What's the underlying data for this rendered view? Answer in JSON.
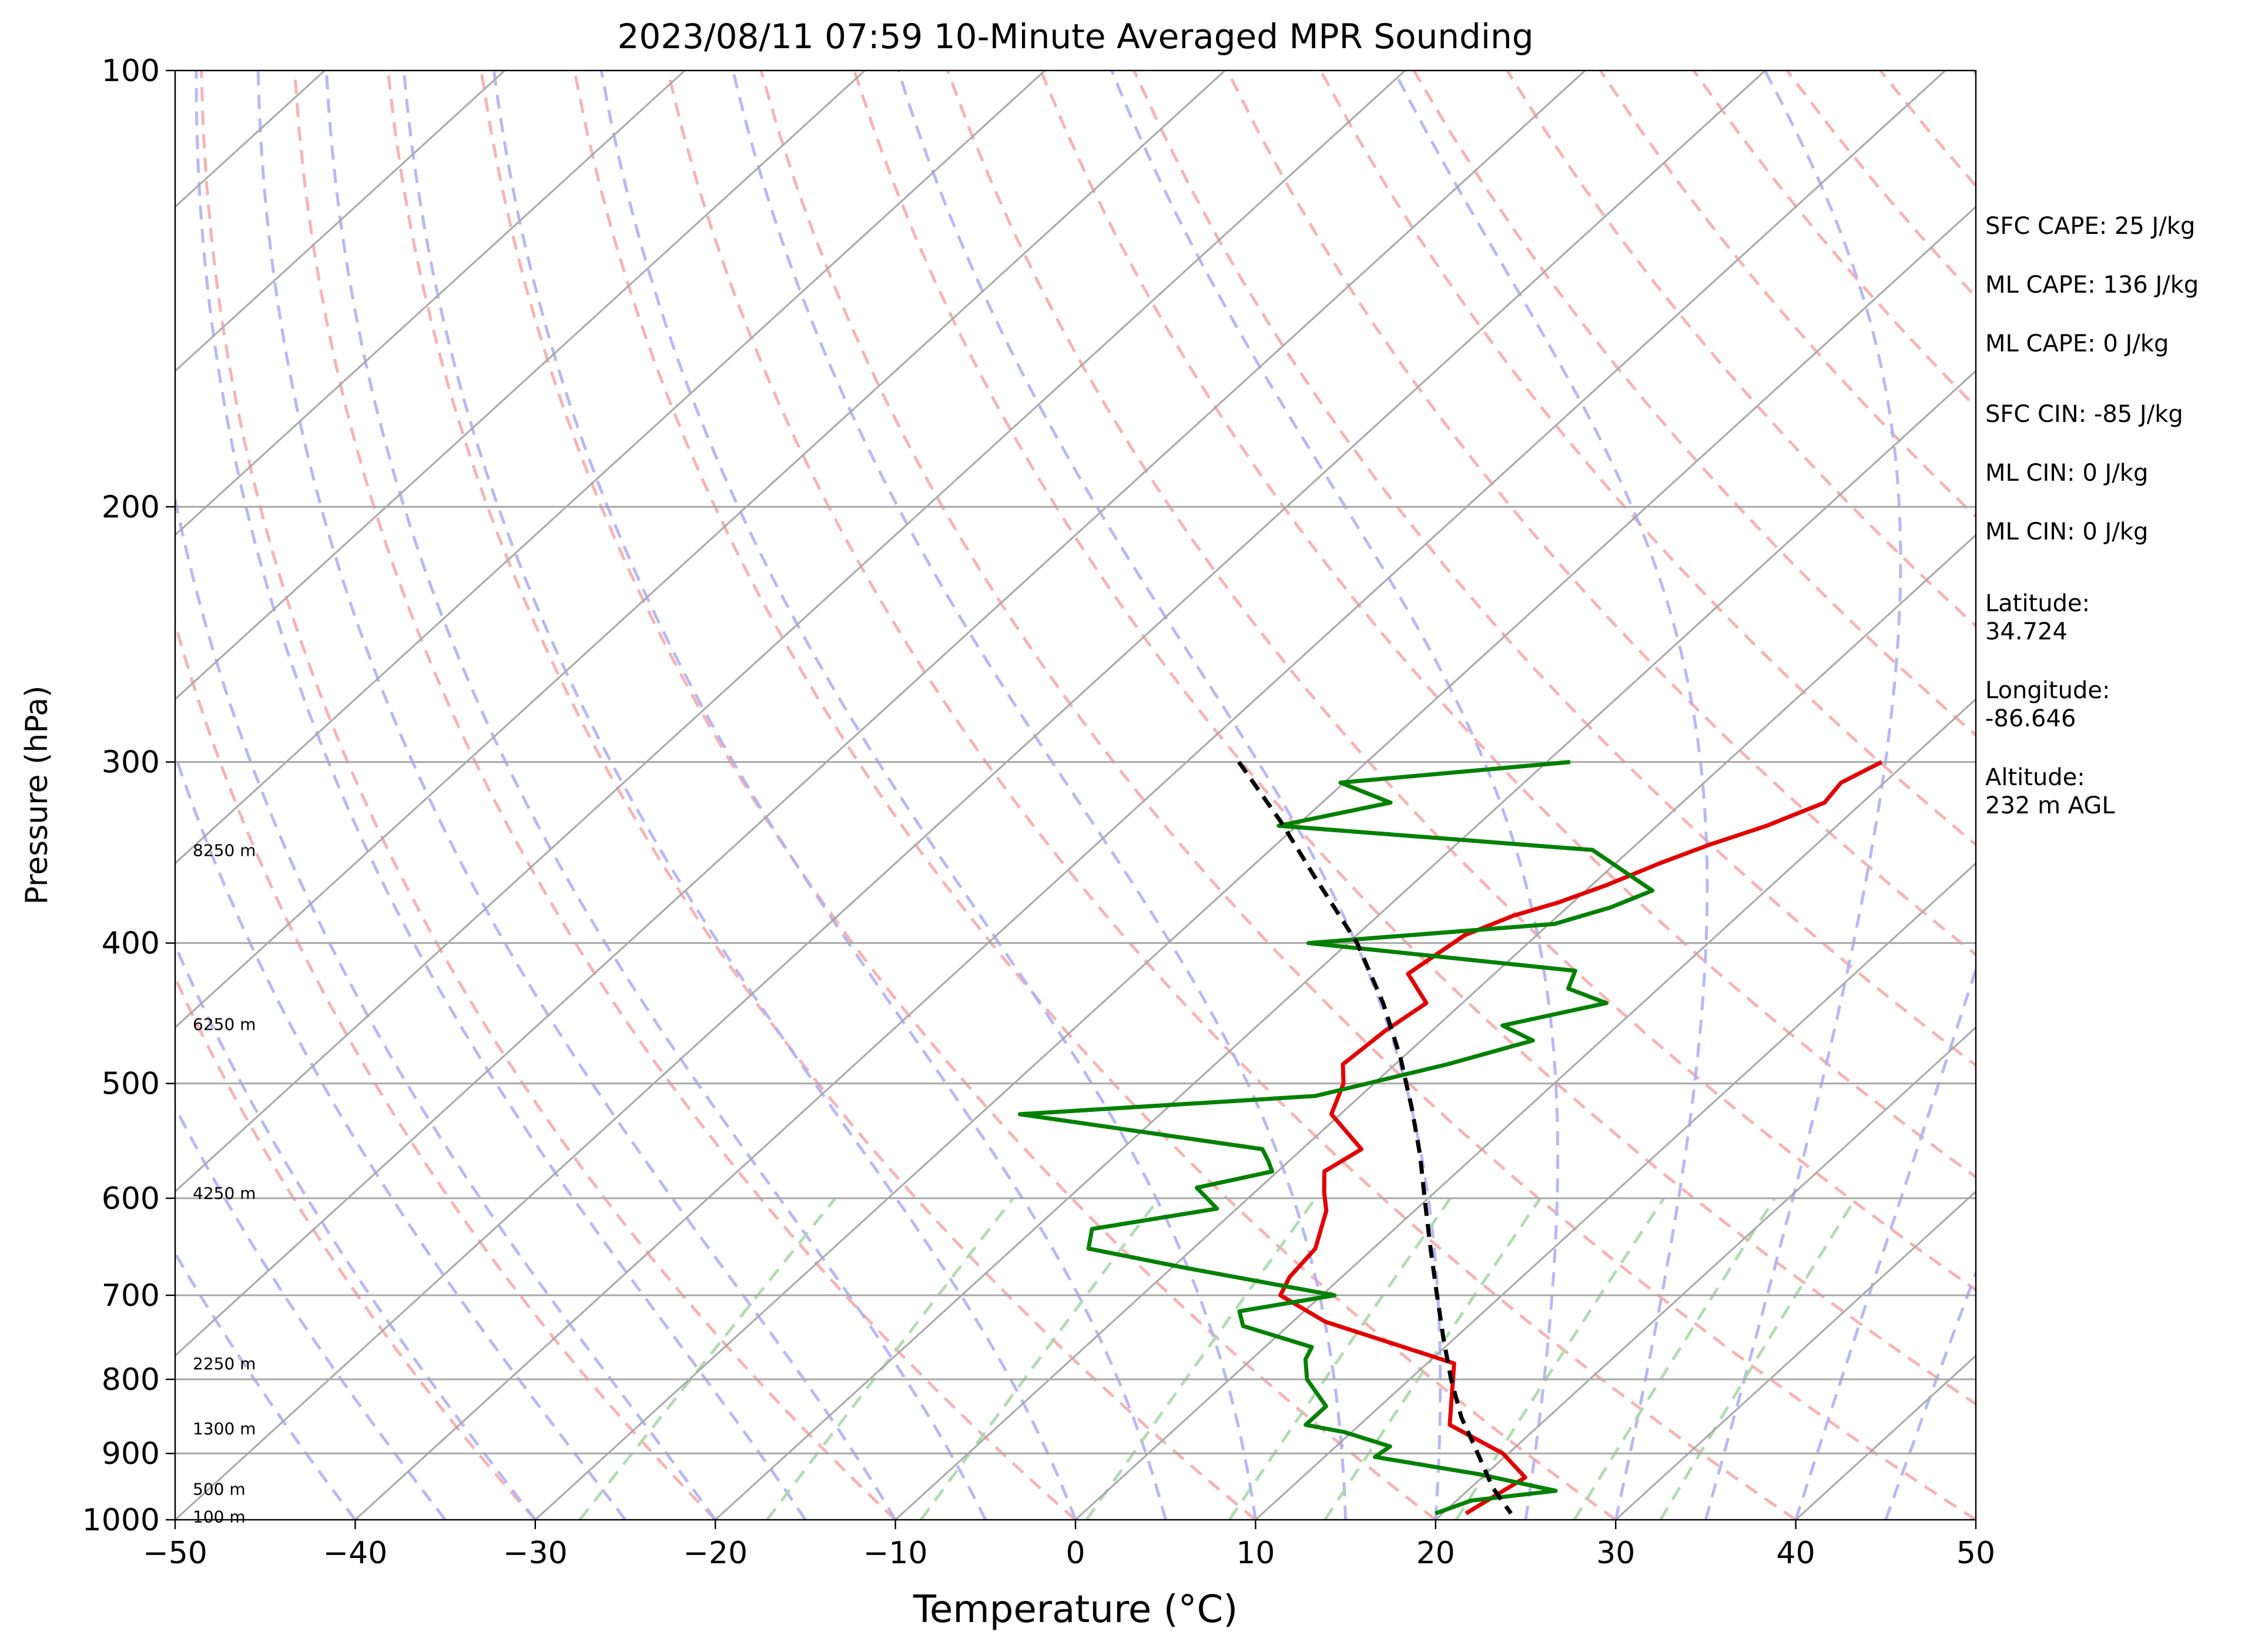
{
  "chart_data": {
    "type": "line",
    "title": "2023/08/11 07:59 10-Minute Averaged MPR Sounding",
    "xlabel": "Temperature (°C)",
    "ylabel": "Pressure (hPa)",
    "xlim": [
      -50,
      50
    ],
    "ylim": [
      1000,
      100
    ],
    "y_scale": "log",
    "skew": "skew-T",
    "x_ticks": [
      "−50",
      "−40",
      "−30",
      "−20",
      "−10",
      "0",
      "10",
      "20",
      "30",
      "40",
      "50"
    ],
    "y_ticks": [
      "100",
      "200",
      "300",
      "400",
      "500",
      "600",
      "700",
      "800",
      "900",
      "1000"
    ],
    "height_labels": [
      {
        "text": "8250 m",
        "pressure": 345
      },
      {
        "text": "6250 m",
        "pressure": 455
      },
      {
        "text": "4250 m",
        "pressure": 595
      },
      {
        "text": "2250 m",
        "pressure": 780
      },
      {
        "text": "1300 m",
        "pressure": 865
      },
      {
        "text": "500 m",
        "pressure": 952
      },
      {
        "text": "100 m",
        "pressure": 995
      }
    ],
    "stats": [
      "SFC CAPE: 25 J/kg",
      "ML CAPE: 136 J/kg",
      "ML CAPE: 0 J/kg",
      "SFC CIN: -85 J/kg",
      "ML CIN: 0 J/kg",
      "ML CIN: 0 J/kg",
      "Latitude:\n34.724",
      "Longitude:\n-86.646",
      "Altitude:\n232 m AGL"
    ],
    "series": [
      {
        "color": "#e00000",
        "points": [
          [
            300,
            -1.4
          ],
          [
            310,
            -2.4
          ],
          [
            320,
            -2.1
          ],
          [
            332,
            -3.9
          ],
          [
            342,
            -5.9
          ],
          [
            352,
            -7.5
          ],
          [
            365,
            -9.2
          ],
          [
            375,
            -10.8
          ],
          [
            383,
            -12.5
          ],
          [
            395,
            -14.0
          ],
          [
            420,
            -14.8
          ],
          [
            440,
            -12.0
          ],
          [
            460,
            -12.6
          ],
          [
            485,
            -12.9
          ],
          [
            500,
            -11.7
          ],
          [
            525,
            -10.5
          ],
          [
            555,
            -6.7
          ],
          [
            575,
            -7.4
          ],
          [
            595,
            -6.1
          ],
          [
            612,
            -4.9
          ],
          [
            650,
            -3.2
          ],
          [
            680,
            -2.9
          ],
          [
            700,
            -2.3
          ],
          [
            730,
            1.8
          ],
          [
            780,
            11.5
          ],
          [
            860,
            15.0
          ],
          [
            900,
            19.7
          ],
          [
            935,
            22.4
          ],
          [
            990,
            21.3
          ]
        ]
      },
      {
        "color": "#008000",
        "points": [
          [
            300,
            -18.7
          ],
          [
            310,
            -30.2
          ],
          [
            320,
            -26.2
          ],
          [
            332,
            -31.0
          ],
          [
            345,
            -12.1
          ],
          [
            368,
            -6.3
          ],
          [
            378,
            -7.6
          ],
          [
            388,
            -9.7
          ],
          [
            400,
            -22.2
          ],
          [
            418,
            -5.7
          ],
          [
            430,
            -5.0
          ],
          [
            440,
            -2.0
          ],
          [
            456,
            -6.4
          ],
          [
            467,
            -3.8
          ],
          [
            485,
            -7.1
          ],
          [
            510,
            -12.5
          ],
          [
            525,
            -27.8
          ],
          [
            555,
            -12.2
          ],
          [
            565,
            -11.2
          ],
          [
            575,
            -10.3
          ],
          [
            590,
            -13.5
          ],
          [
            610,
            -11.1
          ],
          [
            630,
            -16.8
          ],
          [
            650,
            -15.8
          ],
          [
            670,
            -9.3
          ],
          [
            690,
            -2.6
          ],
          [
            700,
            0.7
          ],
          [
            718,
            -3.6
          ],
          [
            735,
            -2.5
          ],
          [
            760,
            2.6
          ],
          [
            775,
            3.0
          ],
          [
            800,
            4.3
          ],
          [
            835,
            7.0
          ],
          [
            860,
            7.0
          ],
          [
            870,
            9.6
          ],
          [
            890,
            13.0
          ],
          [
            905,
            12.8
          ],
          [
            930,
            19.6
          ],
          [
            955,
            24.9
          ],
          [
            970,
            20.8
          ],
          [
            990,
            19.6
          ]
        ]
      },
      {
        "color": "#000000",
        "dashed": true,
        "points": [
          [
            300,
            -37.1
          ],
          [
            330,
            -31.1
          ],
          [
            360,
            -25.9
          ],
          [
            400,
            -19.5
          ],
          [
            440,
            -14.4
          ],
          [
            480,
            -10.1
          ],
          [
            520,
            -6.4
          ],
          [
            560,
            -3.1
          ],
          [
            600,
            -0.2
          ],
          [
            650,
            3.2
          ],
          [
            700,
            6.4
          ],
          [
            750,
            9.4
          ],
          [
            800,
            12.3
          ],
          [
            850,
            15.2
          ],
          [
            900,
            18.3
          ],
          [
            950,
            21.2
          ],
          [
            990,
            23.8
          ]
        ]
      }
    ]
  }
}
